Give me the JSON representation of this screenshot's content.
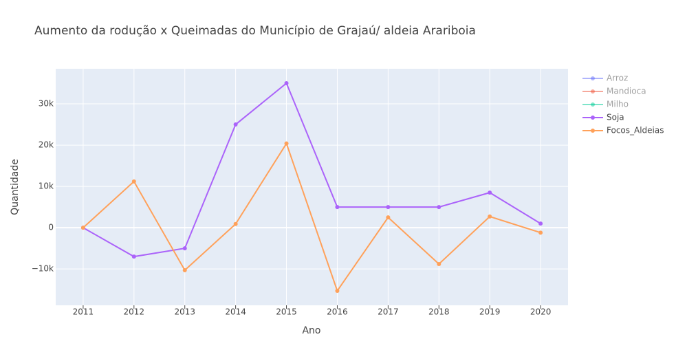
{
  "chart_data": {
    "type": "line",
    "title": "Aumento da rodução x Queimadas do Município de Grajaú/ aldeia Arariboia",
    "xlabel": "Ano",
    "ylabel": "Quantidade",
    "x": [
      2011,
      2012,
      2013,
      2014,
      2015,
      2016,
      2017,
      2018,
      2019,
      2020
    ],
    "series": [
      {
        "name": "Arroz",
        "color": "#636efa",
        "visible": "legendonly"
      },
      {
        "name": "Mandioca",
        "color": "#EF553B",
        "visible": "legendonly"
      },
      {
        "name": "Milho",
        "color": "#00cc96",
        "visible": "legendonly"
      },
      {
        "name": "Soja",
        "color": "#ab63fa",
        "values": [
          0,
          -7000,
          -5000,
          25000,
          35000,
          5000,
          5000,
          5000,
          8500,
          1000
        ]
      },
      {
        "name": "Focos_Aldeias",
        "color": "#FFA15A",
        "values": [
          0,
          11200,
          -10300,
          900,
          20400,
          -15300,
          2500,
          -8800,
          2700,
          -1200
        ]
      }
    ],
    "xlim": [
      2010.46,
      2020.54
    ],
    "xticks": [
      2011,
      2012,
      2013,
      2014,
      2015,
      2016,
      2017,
      2018,
      2019,
      2020
    ],
    "ylim": [
      -18800,
      38500
    ],
    "yticks": [
      {
        "value": -10000,
        "label": "−10k"
      },
      0,
      {
        "value": 10000,
        "label": "10k"
      },
      {
        "value": 20000,
        "label": "20k"
      },
      {
        "value": 30000,
        "label": "30k"
      }
    ],
    "grid": true,
    "legend": "right"
  }
}
